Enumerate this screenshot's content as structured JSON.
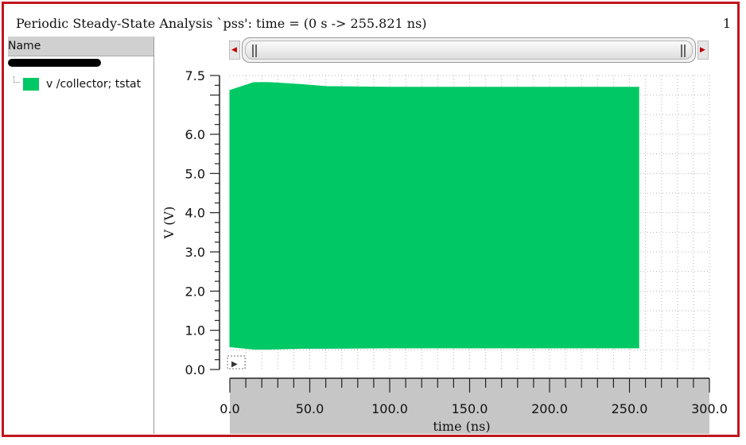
{
  "window": {
    "title": "Periodic Steady-State Analysis `pss': time = (0 s -> 255.821 ns)",
    "number": "1"
  },
  "sidebar": {
    "header": "Name",
    "signals": [
      {
        "label": "v /collector; tstat",
        "color": "#00c864"
      }
    ]
  },
  "scrollbar": {
    "left_arrow_icon": "arrow-left-icon",
    "right_arrow_icon": "arrow-right-icon"
  },
  "chart_data": {
    "type": "area",
    "title": "",
    "xlabel": "time (ns)",
    "ylabel": "V (V)",
    "xlim": [
      0,
      300
    ],
    "ylim": [
      0,
      7.5
    ],
    "x_ticks": [
      "0.0",
      "50.0",
      "100.0",
      "150.0",
      "200.0",
      "250.0",
      "300.0"
    ],
    "y_ticks": [
      "0.0",
      "1.0",
      "2.0",
      "3.0",
      "4.0",
      "5.0",
      "6.0",
      "7.5"
    ],
    "grid": true,
    "series": [
      {
        "name": "v /collector; tstat",
        "color": "#00c864",
        "x": [
          0,
          15,
          25,
          45,
          60,
          100,
          150,
          200,
          255.821
        ],
        "y_max": [
          7.12,
          7.32,
          7.32,
          7.27,
          7.22,
          7.2,
          7.2,
          7.2,
          7.2
        ],
        "y_min": [
          0.58,
          0.52,
          0.52,
          0.54,
          0.54,
          0.55,
          0.55,
          0.55,
          0.55
        ]
      }
    ]
  }
}
